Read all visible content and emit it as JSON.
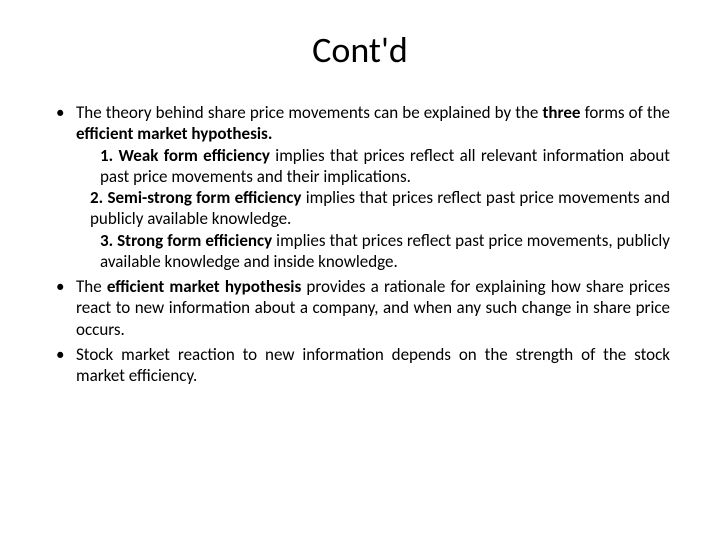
{
  "title": "Cont'd",
  "typography": {
    "title_fontsize": 36,
    "body_fontsize": 17,
    "font_family": "Calibri",
    "text_color": "#000000",
    "background_color": "#ffffff",
    "alignment": "justify",
    "line_height": 1.25
  },
  "bullets": [
    {
      "main": "The theory behind share price movements can be explained by the <b>three</b> forms of the <b>efficient market hypothesis.</b>",
      "subs": [
        {
          "indent": true,
          "html": "<b>1. Weak form efficiency</b> implies that prices reflect all relevant information about past price movements and their implications."
        },
        {
          "indent": false,
          "html": "<b>2. Semi-strong form efficiency</b> implies that prices reflect past price movements and publicly available knowledge."
        },
        {
          "indent": true,
          "html": "<b>3. Strong form efficiency</b> implies that prices reflect past price movements, publicly available knowledge and inside knowledge."
        }
      ]
    },
    {
      "main": "The <b>efficient market hypothesis</b> provides a rationale for explaining how share prices react to new information about a company, and when any such change in share price occurs.",
      "subs": []
    },
    {
      "main": "Stock market reaction to new information depends on the strength of the stock market efficiency.",
      "subs": []
    }
  ]
}
